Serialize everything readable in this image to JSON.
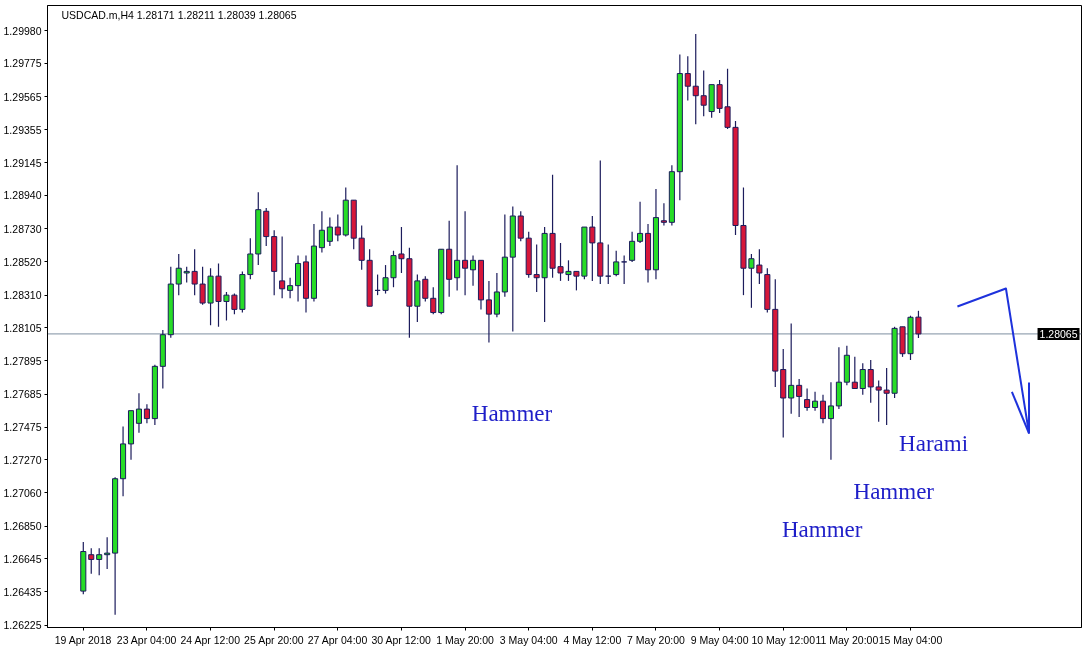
{
  "chart_data": {
    "type": "candlestick",
    "title": "USDCAD.m,H4  1.28171 1.28211 1.28039 1.28065",
    "categories": [
      "19 Apr 2018",
      null,
      null,
      null,
      null,
      null,
      null,
      null,
      "23 Apr 04:00",
      null,
      null,
      null,
      null,
      null,
      null,
      null,
      "24 Apr 12:00",
      null,
      null,
      null,
      null,
      null,
      null,
      null,
      "25 Apr 20:00",
      null,
      null,
      null,
      null,
      null,
      null,
      null,
      "27 Apr 04:00",
      null,
      null,
      null,
      null,
      null,
      null,
      null,
      "30 Apr 12:00",
      null,
      null,
      null,
      null,
      null,
      null,
      null,
      "1 May 20:00",
      null,
      null,
      null,
      null,
      null,
      null,
      null,
      "3 May 04:00",
      null,
      null,
      null,
      null,
      null,
      null,
      null,
      "4 May 12:00",
      null,
      null,
      null,
      null,
      null,
      null,
      null,
      "7 May 20:00",
      null,
      null,
      null,
      null,
      null,
      null,
      null,
      "9 May 04:00",
      null,
      null,
      null,
      null,
      null,
      null,
      null,
      "10 May 12:00",
      null,
      null,
      null,
      null,
      null,
      null,
      null,
      "11 May 20:00",
      null,
      null,
      null,
      null,
      null,
      null,
      null,
      "15 May 04:00",
      null
    ],
    "ohlc": [
      [
        1.2644,
        1.2675,
        1.2642,
        1.2669
      ],
      [
        1.2667,
        1.2671,
        1.2655,
        1.2664
      ],
      [
        1.2664,
        1.2671,
        1.2654,
        1.2667
      ],
      [
        1.2667,
        1.2678,
        1.2658,
        1.2668
      ],
      [
        1.2668,
        1.2716,
        1.2629,
        1.2715
      ],
      [
        1.2715,
        1.2748,
        1.2704,
        1.2737
      ],
      [
        1.2737,
        1.2758,
        1.2727,
        1.2758
      ],
      [
        1.275,
        1.2769,
        1.2744,
        1.2759
      ],
      [
        1.2759,
        1.2762,
        1.275,
        1.2753
      ],
      [
        1.2753,
        1.2787,
        1.2749,
        1.2786
      ],
      [
        1.2786,
        1.2809,
        1.2772,
        1.2806
      ],
      [
        1.2806,
        1.2849,
        1.2804,
        1.2838
      ],
      [
        1.2838,
        1.2857,
        1.2831,
        1.2848
      ],
      [
        1.2845,
        1.2849,
        1.2839,
        1.2846
      ],
      [
        1.2846,
        1.286,
        1.2831,
        1.2838
      ],
      [
        1.2838,
        1.2849,
        1.2825,
        1.2826
      ],
      [
        1.2826,
        1.2848,
        1.2812,
        1.2843
      ],
      [
        1.2843,
        1.2851,
        1.2811,
        1.2827
      ],
      [
        1.2827,
        1.2833,
        1.2815,
        1.2831
      ],
      [
        1.2831,
        1.2832,
        1.2819,
        1.2822
      ],
      [
        1.2822,
        1.2846,
        1.282,
        1.2844
      ],
      [
        1.2844,
        1.2867,
        1.2841,
        1.2857
      ],
      [
        1.2857,
        1.2896,
        1.285,
        1.2885
      ],
      [
        1.2884,
        1.2886,
        1.2862,
        1.2868
      ],
      [
        1.2868,
        1.2872,
        1.2831,
        1.2846
      ],
      [
        1.284,
        1.2868,
        1.2829,
        1.2835
      ],
      [
        1.2834,
        1.2842,
        1.2829,
        1.2837
      ],
      [
        1.2837,
        1.2856,
        1.2827,
        1.2851
      ],
      [
        1.2852,
        1.2856,
        1.282,
        1.2829
      ],
      [
        1.2829,
        1.2876,
        1.2827,
        1.2862
      ],
      [
        1.2861,
        1.2884,
        1.2858,
        1.2872
      ],
      [
        1.2865,
        1.288,
        1.2862,
        1.2874
      ],
      [
        1.2874,
        1.2882,
        1.2865,
        1.2869
      ],
      [
        1.2869,
        1.2899,
        1.2868,
        1.2891
      ],
      [
        1.2891,
        1.2891,
        1.286,
        1.2867
      ],
      [
        1.2867,
        1.2875,
        1.2847,
        1.2853
      ],
      [
        1.2853,
        1.286,
        1.2824,
        1.2824
      ],
      [
        1.2834,
        1.2844,
        1.2831,
        1.2834
      ],
      [
        1.2834,
        1.285,
        1.2832,
        1.2842
      ],
      [
        1.2842,
        1.2859,
        1.2836,
        1.2856
      ],
      [
        1.2857,
        1.2874,
        1.2845,
        1.2854
      ],
      [
        1.2854,
        1.2861,
        1.2804,
        1.2824
      ],
      [
        1.2824,
        1.2844,
        1.2814,
        1.284
      ],
      [
        1.2841,
        1.2843,
        1.2827,
        1.2829
      ],
      [
        1.2829,
        1.2836,
        1.2819,
        1.282
      ],
      [
        1.282,
        1.286,
        1.2819,
        1.286
      ],
      [
        1.286,
        1.2878,
        1.283,
        1.2841
      ],
      [
        1.2842,
        1.2913,
        1.2834,
        1.2853
      ],
      [
        1.2853,
        1.2884,
        1.2831,
        1.2848
      ],
      [
        1.2847,
        1.2856,
        1.2837,
        1.2853
      ],
      [
        1.2853,
        1.2853,
        1.2822,
        1.2828
      ],
      [
        1.2828,
        1.284,
        1.2801,
        1.2819
      ],
      [
        1.2819,
        1.2845,
        1.2817,
        1.2833
      ],
      [
        1.2833,
        1.2882,
        1.283,
        1.2855
      ],
      [
        1.2855,
        1.2887,
        1.2808,
        1.2881
      ],
      [
        1.2881,
        1.2884,
        1.2865,
        1.2867
      ],
      [
        1.2867,
        1.2871,
        1.2842,
        1.2844
      ],
      [
        1.2844,
        1.2863,
        1.2833,
        1.2842
      ],
      [
        1.2842,
        1.2874,
        1.2814,
        1.287
      ],
      [
        1.287,
        1.2907,
        1.2842,
        1.2848
      ],
      [
        1.2849,
        1.2864,
        1.284,
        1.2845
      ],
      [
        1.2844,
        1.2853,
        1.284,
        1.2846
      ],
      [
        1.2846,
        1.2846,
        1.2834,
        1.2843
      ],
      [
        1.2843,
        1.2874,
        1.2841,
        1.2874
      ],
      [
        1.2874,
        1.2881,
        1.284,
        1.2864
      ],
      [
        1.2864,
        1.2916,
        1.2838,
        1.2843
      ],
      [
        1.2843,
        1.2863,
        1.2838,
        1.2843
      ],
      [
        1.2844,
        1.2859,
        1.2843,
        1.2852
      ],
      [
        1.2852,
        1.2856,
        1.2838,
        1.2852
      ],
      [
        1.2853,
        1.2871,
        1.2852,
        1.2865
      ],
      [
        1.2865,
        1.289,
        1.2864,
        1.287
      ],
      [
        1.287,
        1.2876,
        1.2839,
        1.2847
      ],
      [
        1.2847,
        1.2898,
        1.2841,
        1.288
      ],
      [
        1.2878,
        1.2889,
        1.2875,
        1.2877
      ],
      [
        1.2877,
        1.2913,
        1.2875,
        1.2909
      ],
      [
        1.2909,
        1.2983,
        1.2891,
        1.2971
      ],
      [
        1.2971,
        1.2982,
        1.2954,
        1.2963
      ],
      [
        1.2963,
        1.2996,
        1.2939,
        1.2957
      ],
      [
        1.2957,
        1.2973,
        1.2944,
        1.2951
      ],
      [
        1.2947,
        1.2964,
        1.2943,
        1.2964
      ],
      [
        1.2964,
        1.2967,
        1.2946,
        1.2949
      ],
      [
        1.295,
        1.2974,
        1.2936,
        1.2937
      ],
      [
        1.2937,
        1.2941,
        1.2869,
        1.2875
      ],
      [
        1.2875,
        1.2899,
        1.2831,
        1.2848
      ],
      [
        1.2848,
        1.2857,
        1.2823,
        1.2854
      ],
      [
        1.285,
        1.286,
        1.2838,
        1.2845
      ],
      [
        1.2844,
        1.2848,
        1.282,
        1.2822
      ],
      [
        1.2822,
        1.2841,
        1.2773,
        1.2783
      ],
      [
        1.2784,
        1.2797,
        1.2741,
        1.2766
      ],
      [
        1.2766,
        1.2813,
        1.2756,
        1.2774
      ],
      [
        1.2774,
        1.2778,
        1.2754,
        1.2767
      ],
      [
        1.2765,
        1.2772,
        1.2758,
        1.276
      ],
      [
        1.276,
        1.277,
        1.2758,
        1.2764
      ],
      [
        1.2764,
        1.2768,
        1.275,
        1.2753
      ],
      [
        1.2753,
        1.2776,
        1.2727,
        1.2761
      ],
      [
        1.2761,
        1.2798,
        1.2759,
        1.2776
      ],
      [
        1.2776,
        1.2799,
        1.2774,
        1.2793
      ],
      [
        1.2776,
        1.2792,
        1.2772,
        1.2772
      ],
      [
        1.2772,
        1.2788,
        1.2768,
        1.2784
      ],
      [
        1.2784,
        1.279,
        1.2763,
        1.2773
      ],
      [
        1.2773,
        1.2777,
        1.2751,
        1.2771
      ],
      [
        1.2771,
        1.2785,
        1.2749,
        1.2769
      ],
      [
        1.2769,
        1.2811,
        1.2766,
        1.281
      ],
      [
        1.2811,
        1.2811,
        1.2792,
        1.2794
      ],
      [
        1.2794,
        1.2818,
        1.279,
        1.2817
      ],
      [
        1.28171,
        1.28211,
        1.28039,
        1.28065
      ]
    ],
    "colors": [
      "#27dc27",
      "#d6163a",
      "#27dc27",
      "#27dc27",
      "#27dc27",
      "#27dc27",
      "#27dc27",
      "#27dc27",
      "#d6163a",
      "#27dc27",
      "#27dc27",
      "#27dc27",
      "#27dc27",
      "#27dc27",
      "#d6163a",
      "#d6163a",
      "#27dc27",
      "#d6163a",
      "#27dc27",
      "#d6163a",
      "#27dc27",
      "#27dc27",
      "#27dc27",
      "#d6163a",
      "#d6163a",
      "#d6163a",
      "#27dc27",
      "#27dc27",
      "#d6163a",
      "#27dc27",
      "#27dc27",
      "#27dc27",
      "#d6163a",
      "#27dc27",
      "#d6163a",
      "#d6163a",
      "#d6163a",
      "#1c1c5c",
      "#27dc27",
      "#27dc27",
      "#d6163a",
      "#d6163a",
      "#27dc27",
      "#d6163a",
      "#d6163a",
      "#27dc27",
      "#d6163a",
      "#27dc27",
      "#d6163a",
      "#27dc27",
      "#d6163a",
      "#d6163a",
      "#27dc27",
      "#27dc27",
      "#27dc27",
      "#d6163a",
      "#d6163a",
      "#d6163a",
      "#27dc27",
      "#d6163a",
      "#d6163a",
      "#27dc27",
      "#d6163a",
      "#27dc27",
      "#d6163a",
      "#d6163a",
      "#1c1c5c",
      "#27dc27",
      "#1c1c5c",
      "#27dc27",
      "#27dc27",
      "#d6163a",
      "#27dc27",
      "#d6163a",
      "#27dc27",
      "#27dc27",
      "#d6163a",
      "#d6163a",
      "#d6163a",
      "#27dc27",
      "#d6163a",
      "#d6163a",
      "#d6163a",
      "#d6163a",
      "#27dc27",
      "#d6163a",
      "#d6163a",
      "#d6163a",
      "#d6163a",
      "#27dc27",
      "#d6163a",
      "#d6163a",
      "#27dc27",
      "#d6163a",
      "#27dc27",
      "#27dc27",
      "#27dc27",
      "#d6163a",
      "#27dc27",
      "#d6163a",
      "#d6163a",
      "#d6163a",
      "#27dc27",
      "#d6163a",
      "#27dc27",
      "#d6163a"
    ],
    "ylim": [
      1.2621,
      1.3014
    ],
    "yticks": [
      {
        "value": 1.2998,
        "label": "1.29980"
      },
      {
        "value": 1.29775,
        "label": "1.29775"
      },
      {
        "value": 1.29565,
        "label": "1.29565"
      },
      {
        "value": 1.29355,
        "label": "1.29355"
      },
      {
        "value": 1.29145,
        "label": "1.29145"
      },
      {
        "value": 1.2894,
        "label": "1.28940"
      },
      {
        "value": 1.2873,
        "label": "1.28730"
      },
      {
        "value": 1.2852,
        "label": "1.28520"
      },
      {
        "value": 1.2831,
        "label": "1.28310"
      },
      {
        "value": 1.28105,
        "label": "1.28105"
      },
      {
        "value": 1.27895,
        "label": "1.27895"
      },
      {
        "value": 1.27685,
        "label": "1.27685"
      },
      {
        "value": 1.27475,
        "label": "1.27475"
      },
      {
        "value": 1.2727,
        "label": "1.27270"
      },
      {
        "value": 1.2706,
        "label": "1.27060"
      },
      {
        "value": 1.2685,
        "label": "1.26850"
      },
      {
        "value": 1.26645,
        "label": "1.26645"
      },
      {
        "value": 1.26435,
        "label": "1.26435"
      },
      {
        "value": 1.26225,
        "label": "1.26225"
      }
    ],
    "ref_lines": [
      {
        "axis": "y",
        "value": 1.28065,
        "label": "1.28065",
        "color": "#7d8ea0"
      }
    ],
    "annotations": [
      "Hammer",
      "Harami",
      "Hammer",
      "Hammer"
    ]
  }
}
